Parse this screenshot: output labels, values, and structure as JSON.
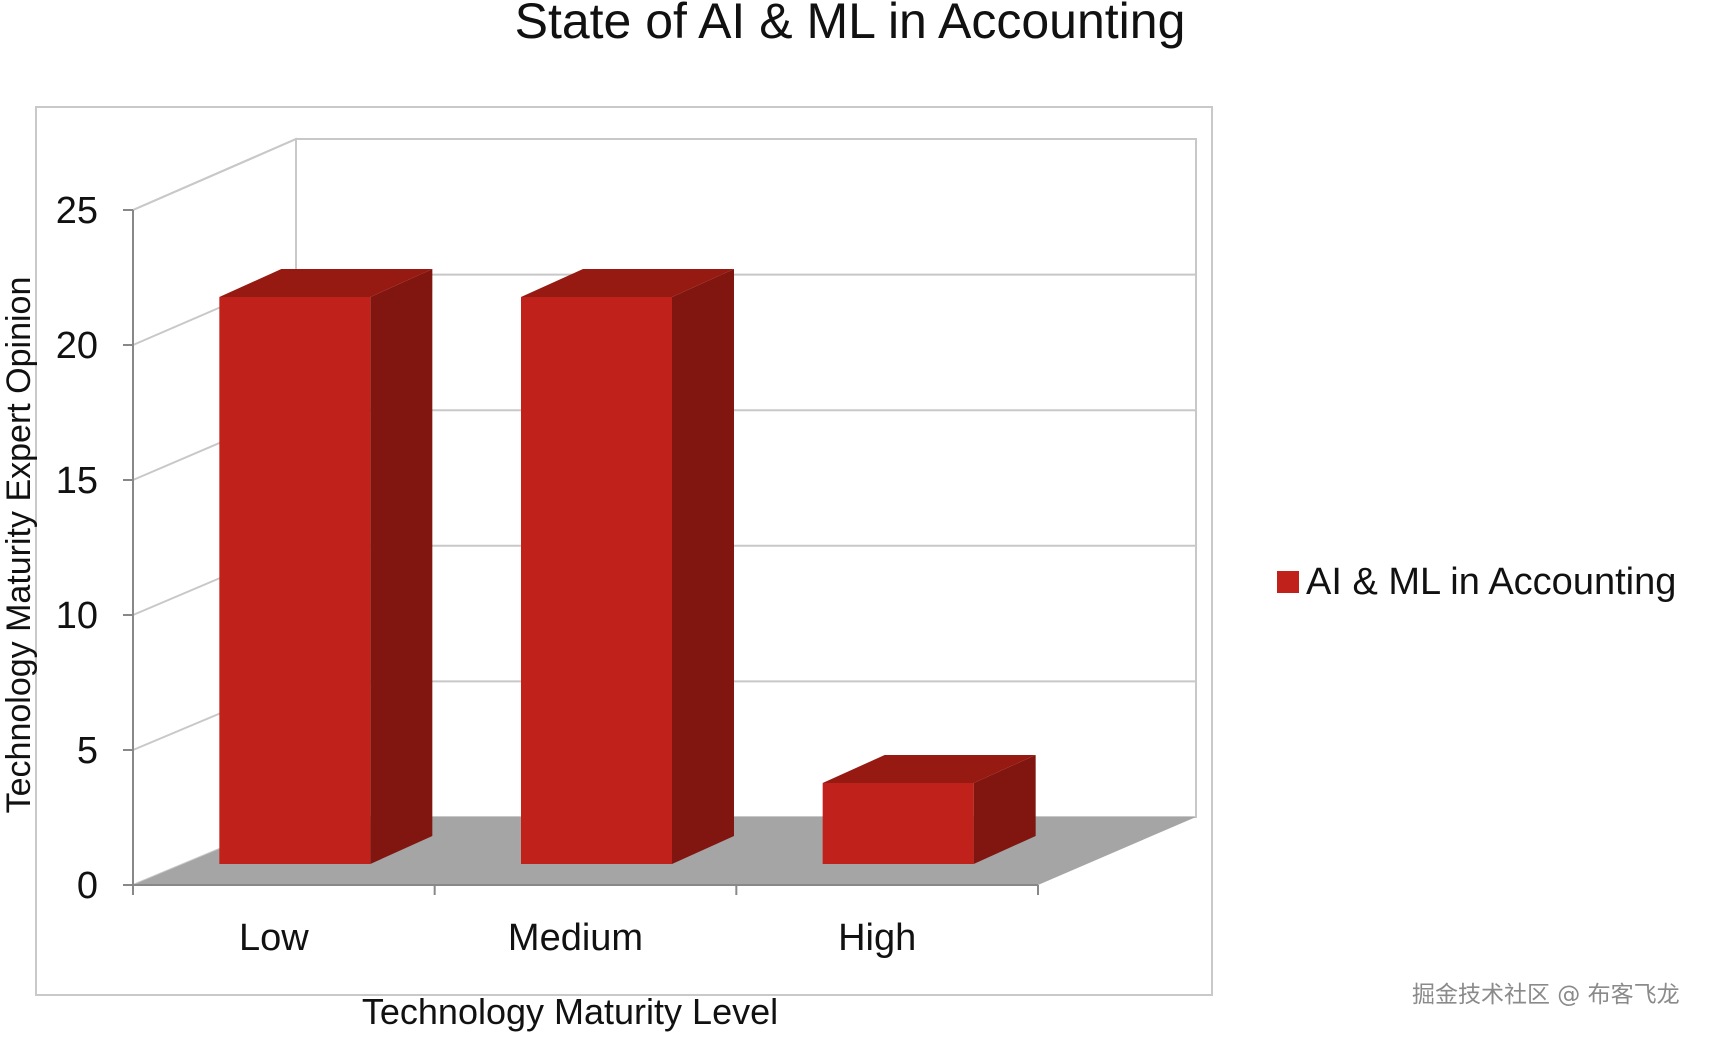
{
  "chart_data": {
    "type": "bar",
    "style": "3d-clustered-column",
    "title": "State of AI & ML in Accounting",
    "xlabel": "Technology Maturity Level",
    "ylabel": "Technology Maturity  Expert Opinion",
    "categories": [
      "Low",
      "Medium",
      "High"
    ],
    "series": [
      {
        "name": "AI & ML in Accounting",
        "values": [
          21,
          21,
          3
        ],
        "color": "#c0211a",
        "side_color": "#80160f",
        "top_color": "#961a12"
      }
    ],
    "ylim": [
      0,
      25
    ],
    "yticks": [
      0,
      5,
      10,
      15,
      20,
      25
    ],
    "grid": true,
    "legend": "right",
    "floor_color": "#a5a5a5",
    "gridline_color": "#c8c8c8"
  },
  "watermark": "掘金技术社区 @ 布客飞龙"
}
